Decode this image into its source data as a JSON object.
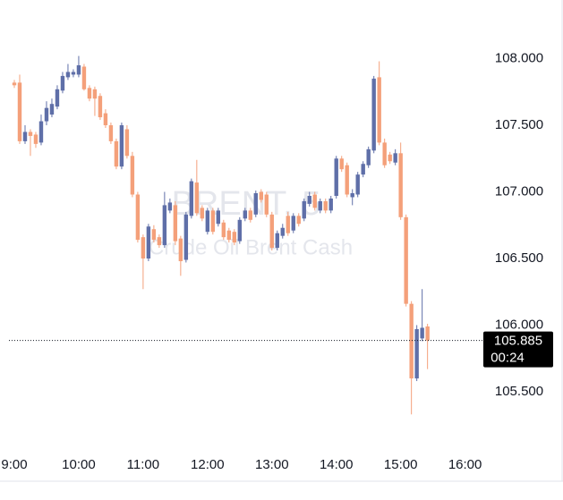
{
  "chart_data": {
    "type": "candlestick",
    "watermark_title": "BRENT, 5",
    "watermark_subtitle": "Crude Oil Brent Cash",
    "up_color": "#5f6fa8",
    "down_color": "#f4a07a",
    "x": [
      "9:00",
      "9:05",
      "9:10",
      "9:15",
      "9:20",
      "9:25",
      "9:30",
      "9:35",
      "9:40",
      "9:45",
      "9:50",
      "9:55",
      "10:00",
      "10:05",
      "10:10",
      "10:15",
      "10:20",
      "10:25",
      "10:30",
      "10:35",
      "10:40",
      "10:45",
      "10:50",
      "10:55",
      "11:00",
      "11:05",
      "11:10",
      "11:15",
      "11:20",
      "11:25",
      "11:30",
      "11:35",
      "11:40",
      "11:45",
      "11:50",
      "11:55",
      "12:00",
      "12:05",
      "12:10",
      "12:15",
      "12:20",
      "12:25",
      "12:30",
      "12:35",
      "12:40",
      "12:45",
      "12:50",
      "12:55",
      "13:00",
      "13:05",
      "13:10",
      "13:15",
      "13:20",
      "13:25",
      "13:30",
      "13:35",
      "13:40",
      "13:45",
      "13:50",
      "13:55",
      "14:00",
      "14:05",
      "14:10",
      "14:15",
      "14:20",
      "14:25",
      "14:30",
      "14:35",
      "14:40",
      "14:45",
      "14:50",
      "14:55",
      "15:00",
      "15:05",
      "15:10",
      "15:15",
      "15:20",
      "15:25"
    ],
    "open": [
      107.82,
      107.82,
      107.38,
      107.45,
      107.43,
      107.37,
      107.53,
      107.58,
      107.64,
      107.76,
      107.86,
      107.88,
      107.88,
      107.94,
      107.78,
      107.77,
      107.72,
      107.59,
      107.5,
      107.38,
      107.19,
      107.47,
      107.27,
      106.98,
      106.66,
      106.5,
      106.72,
      106.66,
      106.6,
      106.86,
      106.9,
      106.65,
      106.49,
      106.82,
      107.07,
      106.88,
      106.7,
      106.86,
      106.76,
      106.77,
      106.71,
      106.7,
      106.63,
      106.8,
      106.86,
      106.83,
      107.0,
      106.98,
      106.83,
      106.58,
      106.67,
      106.82,
      106.71,
      106.82,
      106.8,
      106.91,
      106.98,
      106.86,
      106.93,
      106.86,
      106.97,
      107.25,
      107.2,
      106.96,
      106.98,
      107.13,
      107.2,
      107.31,
      107.86,
      107.37,
      107.28,
      107.22,
      107.29,
      106.81,
      106.16,
      105.6,
      105.9,
      105.99
    ],
    "high": [
      107.84,
      107.88,
      107.5,
      107.47,
      107.45,
      107.58,
      107.68,
      107.7,
      107.8,
      107.9,
      107.96,
      107.92,
      108.02,
      107.96,
      107.8,
      107.79,
      107.74,
      107.62,
      107.52,
      107.4,
      107.52,
      107.5,
      107.3,
      107.0,
      106.68,
      106.76,
      106.75,
      106.68,
      107.0,
      106.95,
      106.93,
      106.67,
      106.85,
      107.1,
      107.24,
      106.9,
      106.88,
      106.88,
      106.88,
      106.79,
      106.73,
      106.72,
      106.81,
      106.88,
      106.88,
      107.01,
      107.02,
      107.0,
      106.85,
      106.71,
      106.76,
      106.85,
      106.84,
      106.84,
      106.95,
      107.0,
      107.0,
      106.95,
      106.95,
      106.97,
      107.27,
      107.27,
      107.22,
      107.02,
      107.15,
      107.23,
      107.34,
      107.87,
      107.98,
      107.4,
      107.3,
      107.32,
      107.37,
      106.83,
      106.18,
      106.0,
      106.27,
      106.01
    ],
    "low": [
      107.78,
      107.36,
      107.36,
      107.27,
      107.33,
      107.35,
      107.5,
      107.56,
      107.62,
      107.74,
      107.84,
      107.86,
      107.86,
      107.76,
      107.68,
      107.57,
      107.54,
      107.48,
      107.36,
      107.17,
      107.17,
      107.25,
      106.96,
      106.62,
      106.27,
      106.48,
      106.62,
      106.58,
      106.58,
      106.84,
      106.6,
      106.37,
      106.47,
      106.8,
      106.82,
      106.78,
      106.68,
      106.68,
      106.74,
      106.64,
      106.62,
      106.6,
      106.61,
      106.78,
      106.77,
      106.81,
      106.92,
      106.81,
      106.56,
      106.56,
      106.65,
      106.67,
      106.69,
      106.74,
      106.78,
      106.89,
      106.86,
      106.84,
      106.84,
      106.84,
      106.95,
      107.15,
      106.96,
      106.9,
      106.96,
      107.11,
      107.18,
      107.29,
      107.35,
      107.18,
      107.21,
      107.2,
      106.79,
      106.14,
      105.33,
      105.58,
      105.88,
      105.67
    ],
    "close": [
      107.8,
      107.38,
      107.45,
      107.42,
      107.36,
      107.53,
      107.63,
      107.66,
      107.77,
      107.87,
      107.9,
      107.9,
      107.95,
      107.77,
      107.7,
      107.7,
      107.56,
      107.5,
      107.38,
      107.19,
      107.5,
      107.27,
      106.98,
      106.64,
      106.5,
      106.74,
      106.64,
      106.6,
      106.9,
      106.92,
      106.63,
      106.48,
      106.83,
      107.08,
      106.84,
      106.8,
      106.86,
      106.7,
      106.86,
      106.66,
      106.64,
      106.62,
      106.79,
      106.86,
      106.79,
      106.99,
      106.94,
      106.83,
      106.58,
      106.69,
      106.73,
      106.69,
      106.82,
      106.76,
      106.93,
      106.97,
      106.88,
      106.93,
      106.86,
      106.95,
      107.25,
      107.17,
      106.98,
      106.99,
      107.13,
      107.21,
      107.32,
      107.85,
      107.37,
      107.2,
      107.23,
      107.29,
      106.81,
      106.16,
      105.6,
      105.97,
      105.98,
      105.885
    ],
    "xlim": [
      "8:55",
      "16:17"
    ],
    "xticks": [
      "9:00",
      "10:00",
      "11:00",
      "12:00",
      "13:00",
      "14:00",
      "15:00",
      "16:00"
    ],
    "ylim": [
      105.05,
      108.44
    ],
    "yticks": [
      {
        "value": 105.5,
        "label": "105.500"
      },
      {
        "value": 106,
        "label": "106.000"
      },
      {
        "value": 106.5,
        "label": "106.500"
      },
      {
        "value": 107,
        "label": "107.000"
      },
      {
        "value": 107.5,
        "label": "107.500"
      },
      {
        "value": 108,
        "label": "108.000"
      }
    ],
    "price_line": {
      "value": 105.885,
      "label": "105.885"
    },
    "countdown": "00:24"
  }
}
